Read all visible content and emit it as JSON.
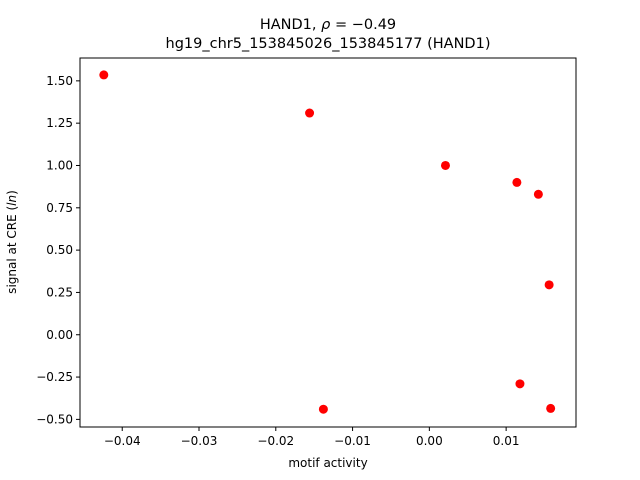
{
  "chart_data": {
    "type": "scatter",
    "title_line1": "HAND1, ",
    "title_rho_symbol": "ρ",
    "title_rho_value": " = −0.49",
    "title_line2": "hg19_chr5_153845026_153845177 (HAND1)",
    "xlabel": "motif activity",
    "ylabel_prefix": "signal at CRE (",
    "ylabel_italic": "ln",
    "ylabel_suffix": ")",
    "xlim": [
      -0.0455,
      0.0191
    ],
    "ylim": [
      -0.545,
      1.635
    ],
    "x_ticks": [
      -0.04,
      -0.03,
      -0.02,
      -0.01,
      0.0,
      0.01
    ],
    "x_tick_labels": [
      "−0.04",
      "−0.03",
      "−0.02",
      "−0.01",
      "0.00",
      "0.01"
    ],
    "y_ticks": [
      -0.5,
      -0.25,
      0.0,
      0.25,
      0.5,
      0.75,
      1.0,
      1.25,
      1.5
    ],
    "y_tick_labels": [
      "−0.50",
      "−0.25",
      "0.00",
      "0.25",
      "0.50",
      "0.75",
      "1.00",
      "1.25",
      "1.50"
    ],
    "marker_color": "#ff0000",
    "grid": false,
    "points": [
      {
        "x": -0.0424,
        "y": 1.535
      },
      {
        "x": -0.0156,
        "y": 1.31
      },
      {
        "x": 0.0021,
        "y": 1.0
      },
      {
        "x": 0.0114,
        "y": 0.9
      },
      {
        "x": 0.0142,
        "y": 0.83
      },
      {
        "x": 0.0156,
        "y": 0.295
      },
      {
        "x": 0.0118,
        "y": -0.29
      },
      {
        "x": 0.0158,
        "y": -0.435
      },
      {
        "x": -0.0138,
        "y": -0.44
      }
    ]
  }
}
